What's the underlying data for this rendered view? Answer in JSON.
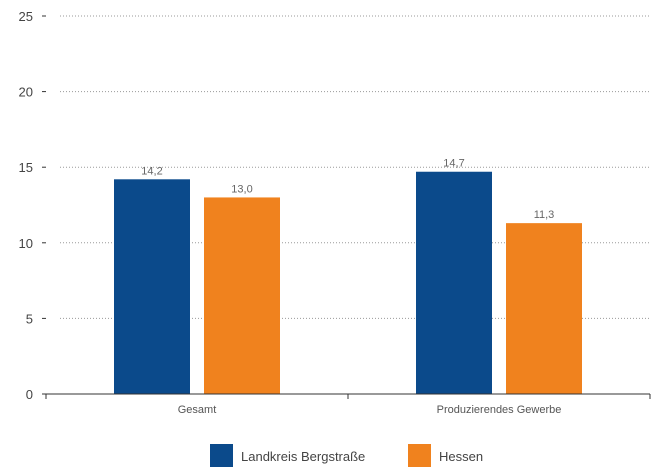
{
  "chart_data": {
    "type": "bar",
    "categories": [
      "Gesamt",
      "Produzierendes Gewerbe"
    ],
    "series": [
      {
        "name": "Landkreis Bergstraße",
        "values": [
          14.2,
          14.7
        ],
        "labels": [
          "14,2",
          "14,7"
        ],
        "color": "#0b4a8b"
      },
      {
        "name": "Hessen",
        "values": [
          13.0,
          11.3
        ],
        "labels": [
          "13,0",
          "11,3"
        ],
        "color": "#f0821e"
      }
    ],
    "ylim": [
      0,
      25
    ],
    "yticks": [
      0,
      5,
      10,
      15,
      20,
      25
    ],
    "grid": true,
    "legend": "bottom-center",
    "title": "",
    "xlabel": "",
    "ylabel": ""
  }
}
